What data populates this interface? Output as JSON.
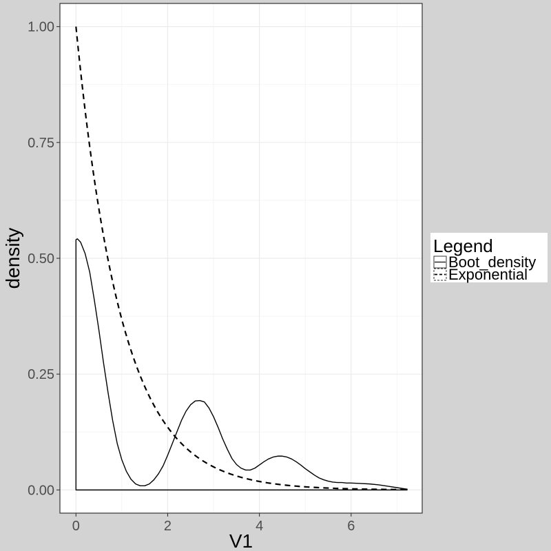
{
  "chart_data": {
    "type": "line",
    "title": "",
    "xlabel": "V1",
    "ylabel": "density",
    "xlim": [
      -0.35,
      7.55
    ],
    "ylim": [
      -0.05,
      1.05
    ],
    "x_ticks": [
      0,
      2,
      4,
      6
    ],
    "y_ticks": [
      0.0,
      0.25,
      0.5,
      0.75,
      1.0
    ],
    "x_tick_labels": [
      "0",
      "2",
      "4",
      "6"
    ],
    "y_tick_labels": [
      "0.00",
      "0.25",
      "0.50",
      "0.75",
      "1.00"
    ],
    "grid": true,
    "legend": {
      "title": "Legend",
      "position": "right",
      "entries": [
        {
          "label": "Boot_density",
          "linetype": "solid"
        },
        {
          "label": "Exponential",
          "linetype": "dashed"
        }
      ]
    },
    "series": [
      {
        "name": "Boot_density",
        "linetype": "solid",
        "color": "#000000",
        "x": [
          0,
          0.03,
          0.1,
          0.2,
          0.3,
          0.4,
          0.5,
          0.6,
          0.7,
          0.8,
          0.9,
          1.0,
          1.1,
          1.2,
          1.3,
          1.4,
          1.5,
          1.6,
          1.7,
          1.8,
          1.9,
          2.0,
          2.1,
          2.2,
          2.3,
          2.4,
          2.5,
          2.6,
          2.7,
          2.8,
          2.9,
          3.0,
          3.1,
          3.2,
          3.3,
          3.4,
          3.5,
          3.6,
          3.7,
          3.8,
          3.9,
          4.0,
          4.1,
          4.2,
          4.3,
          4.4,
          4.5,
          4.6,
          4.7,
          4.8,
          4.9,
          5.0,
          5.1,
          5.2,
          5.3,
          5.4,
          5.5,
          5.6,
          5.7,
          5.8,
          5.9,
          6.0,
          6.2,
          6.4,
          6.6,
          6.8,
          7.0,
          7.2,
          7.22
        ],
        "y": [
          0.54,
          0.542,
          0.535,
          0.51,
          0.47,
          0.41,
          0.345,
          0.275,
          0.21,
          0.15,
          0.1,
          0.065,
          0.04,
          0.023,
          0.013,
          0.009,
          0.009,
          0.013,
          0.022,
          0.035,
          0.052,
          0.075,
          0.1,
          0.125,
          0.15,
          0.17,
          0.184,
          0.192,
          0.193,
          0.19,
          0.177,
          0.158,
          0.135,
          0.11,
          0.088,
          0.068,
          0.055,
          0.047,
          0.043,
          0.043,
          0.047,
          0.054,
          0.061,
          0.067,
          0.071,
          0.073,
          0.073,
          0.071,
          0.067,
          0.061,
          0.054,
          0.046,
          0.039,
          0.032,
          0.026,
          0.022,
          0.019,
          0.017,
          0.016,
          0.016,
          0.015,
          0.015,
          0.014,
          0.013,
          0.011,
          0.008,
          0.005,
          0.002,
          0.002
        ]
      },
      {
        "name": "Exponential",
        "linetype": "dashed",
        "color": "#000000",
        "rate": 1,
        "x_range": [
          0,
          7.22
        ]
      }
    ]
  }
}
